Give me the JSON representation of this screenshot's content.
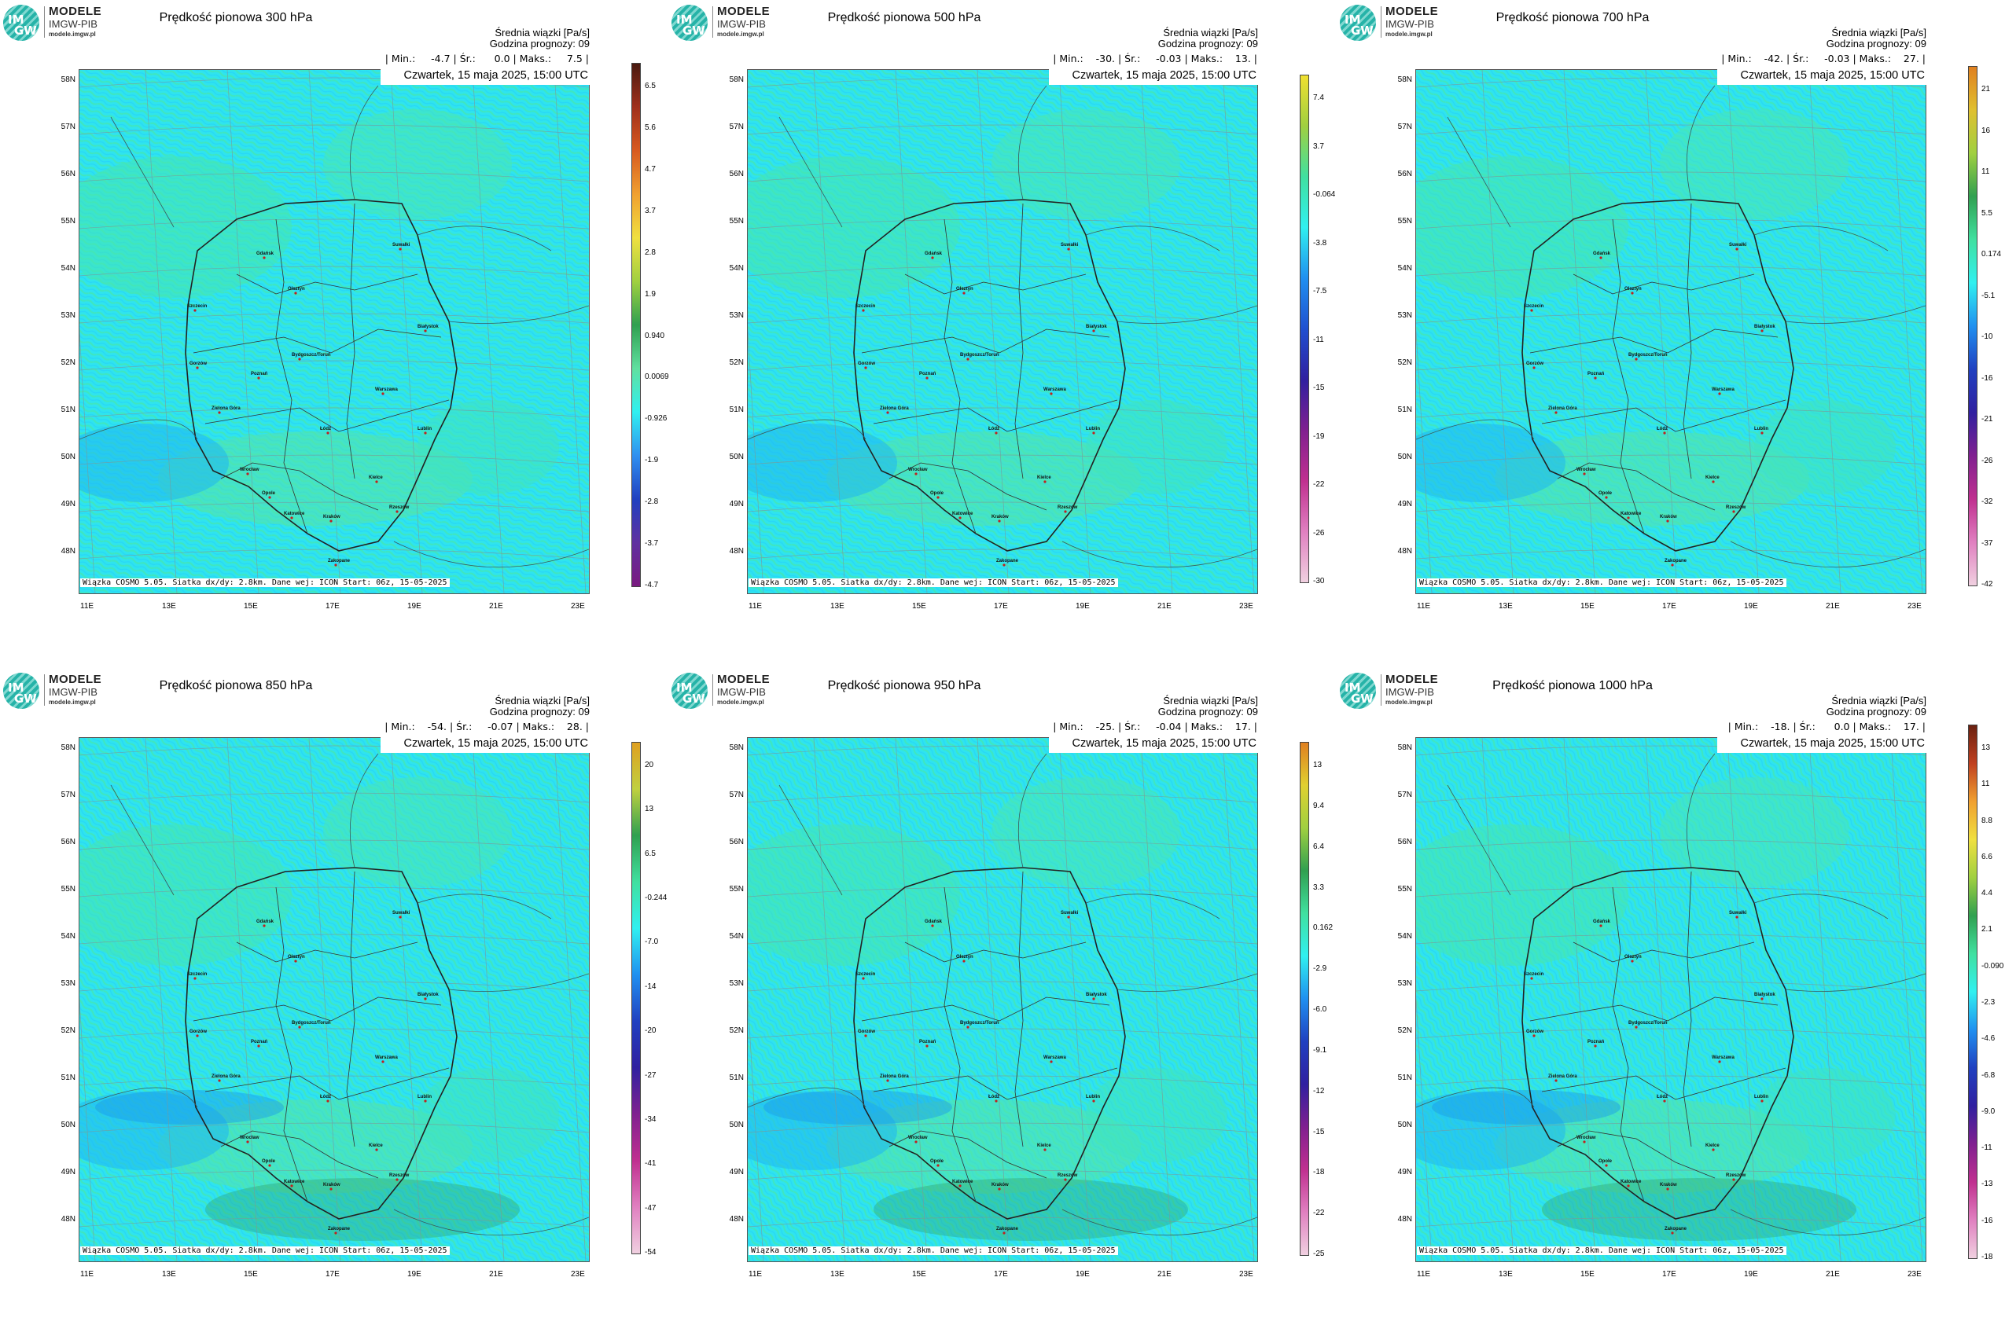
{
  "logo": {
    "brand": "MODELE",
    "org": "IMGW-PIB",
    "url": "modele.imgw.pl",
    "mark_top": "IM",
    "mark_bottom": "GW"
  },
  "info": {
    "line1": "Średnia wiązki [Pa/s]",
    "line2": "Godzina prognozy: 09"
  },
  "date": "Czwartek, 15 maja 2025, 15:00 UTC",
  "credit": "Wiązka COSMO 5.05. Siatka dx/dy: 2.8km. Dane wej: ICON Start: 06z, 15-05-2025",
  "lat_labels": [
    "58N",
    "57N",
    "56N",
    "55N",
    "54N",
    "53N",
    "52N",
    "51N",
    "50N",
    "49N",
    "48N"
  ],
  "lon_labels": [
    "11E",
    "13E",
    "15E",
    "17E",
    "19E",
    "21E",
    "23E"
  ],
  "cities": [
    "Gdańsk",
    "Olsztyn",
    "Suwałki",
    "Szczecin",
    "Białystok",
    "Gorzów",
    "Bydgoszcz/Toruń",
    "Poznań",
    "Warszawa",
    "Zielona Góra",
    "Łódź",
    "Lublin",
    "Wrocław",
    "Kielce",
    "Opole",
    "Rzeszów",
    "Katowice",
    "Kraków",
    "Zakopane"
  ],
  "colors": {
    "background_field": "#2ee6ef",
    "field_alt": "#35e8c8",
    "border": "#333333"
  },
  "panels": [
    {
      "title": "Prędkość pionowa 300 hPa",
      "stats": "| Min.:     -4.7 | Śr.:      0.0 | Maks.:     7.5 |",
      "colorbar": [
        "6.5",
        "5.6",
        "4.7",
        "3.7",
        "2.8",
        "1.9",
        "0.940",
        "0.0069",
        "-0.926",
        "-1.9",
        "-2.8",
        "-3.7",
        "-4.7"
      ],
      "colorbar_colors": [
        "#4a1a10",
        "#a0301c",
        "#d85a20",
        "#f0a030",
        "#f0e040",
        "#a0d040",
        "#30a050",
        "#60e0a0",
        "#30f0f0",
        "#3090f0",
        "#2040c0",
        "#6030a0",
        "#7a1a80"
      ]
    },
    {
      "title": "Prędkość pionowa 500 hPa",
      "stats": "| Min.:    -30. | Śr.:     -0.03 | Maks.:    13. |",
      "colorbar": [
        "7.4",
        "3.7",
        "-0.064",
        "-3.8",
        "-7.5",
        "-11",
        "-15",
        "-19",
        "-22",
        "-26",
        "-30"
      ],
      "colorbar_colors": [
        "#f0e030",
        "#a0d040",
        "#40e0a0",
        "#30f0f0",
        "#2090f0",
        "#2050d0",
        "#3020a0",
        "#802090",
        "#c03090",
        "#e080c0",
        "#f0d0e0"
      ]
    },
    {
      "title": "Prędkość pionowa 700 hPa",
      "stats": "| Min.:    -42. | Śr.:     -0.03 | Maks.:    27. |",
      "colorbar": [
        "21",
        "16",
        "11",
        "5.5",
        "0.174",
        "-5.1",
        "-10",
        "-16",
        "-21",
        "-26",
        "-32",
        "-37",
        "-42"
      ],
      "colorbar_colors": [
        "#e08020",
        "#e0c030",
        "#a0d040",
        "#30a050",
        "#40e0a0",
        "#30f0f0",
        "#2090f0",
        "#2040c0",
        "#3020a0",
        "#802090",
        "#c03090",
        "#e080c0",
        "#f0d0e0"
      ]
    },
    {
      "title": "Prędkość pionowa 850 hPa",
      "stats": "| Min.:    -54. | Śr.:     -0.07 | Maks.:    28. |",
      "colorbar": [
        "20",
        "13",
        "6.5",
        "-0.244",
        "-7.0",
        "-14",
        "-20",
        "-27",
        "-34",
        "-41",
        "-47",
        "-54"
      ],
      "colorbar_colors": [
        "#e0a020",
        "#c0d040",
        "#30a050",
        "#40e0a0",
        "#30f0f0",
        "#2090f0",
        "#2040c0",
        "#3020a0",
        "#802090",
        "#c03090",
        "#e080c0",
        "#f0d0e0"
      ]
    },
    {
      "title": "Prędkość pionowa 950 hPa",
      "stats": "| Min.:    -25. | Śr.:     -0.04 | Maks.:    17. |",
      "colorbar": [
        "13",
        "9.4",
        "6.4",
        "3.3",
        "0.162",
        "-2.9",
        "-6.0",
        "-9.1",
        "-12",
        "-15",
        "-18",
        "-22",
        "-25"
      ],
      "colorbar_colors": [
        "#e08020",
        "#e0d030",
        "#a0d040",
        "#30a050",
        "#40e0a0",
        "#30f0f0",
        "#2090f0",
        "#2040c0",
        "#3020a0",
        "#802090",
        "#c03090",
        "#e080c0",
        "#f0d0e0"
      ]
    },
    {
      "title": "Prędkość pionowa 1000 hPa",
      "stats": "| Min.:    -18. | Śr.:      0.0 | Maks.:    17. |",
      "colorbar": [
        "13",
        "11",
        "8.8",
        "6.6",
        "4.4",
        "2.1",
        "-0.090",
        "-2.3",
        "-4.6",
        "-6.8",
        "-9.0",
        "-11",
        "-13",
        "-16",
        "-18"
      ],
      "colorbar_colors": [
        "#6a2010",
        "#c04020",
        "#f0a030",
        "#f0e040",
        "#a0d040",
        "#30a050",
        "#40e0a0",
        "#30f0f0",
        "#2090f0",
        "#2040c0",
        "#3020a0",
        "#802090",
        "#c03090",
        "#e080c0",
        "#f0d0e0"
      ]
    }
  ]
}
